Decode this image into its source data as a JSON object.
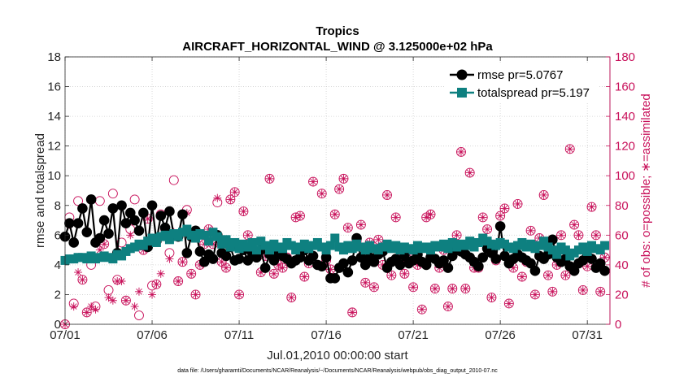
{
  "chart_data": {
    "type": "line",
    "title": "Tropics",
    "subtitle": "AIRCRAFT_HORIZONTAL_WIND @ 3.125000e+02 hPa",
    "xlabel": "Jul.01,2010 00:00:00 start",
    "ylabel": "rmse and totalspread",
    "ylabel_right": "# of obs: o=possible; ∗=assimilated",
    "xlim": [
      1,
      32.3
    ],
    "ylim": [
      0,
      18
    ],
    "ylim_right": [
      0,
      180
    ],
    "x_ticks": [
      1,
      6,
      11,
      16,
      21,
      26,
      31
    ],
    "x_tick_labels": [
      "07/01",
      "07/06",
      "07/11",
      "07/16",
      "07/21",
      "07/26",
      "07/31"
    ],
    "y_ticks": [
      0,
      2,
      4,
      6,
      8,
      10,
      12,
      14,
      16,
      18
    ],
    "y_tick_labels": [
      "0",
      "2",
      "4",
      "6",
      "8",
      "10",
      "12",
      "14",
      "16",
      "18"
    ],
    "y_right_ticks": [
      0,
      20,
      40,
      60,
      80,
      100,
      120,
      140,
      160,
      180
    ],
    "y_right_tick_labels": [
      "0",
      "20",
      "40",
      "60",
      "80",
      "100",
      "120",
      "140",
      "160",
      "180"
    ],
    "grid": true,
    "legend_position": "top-right",
    "series": [
      {
        "name": "rmse pr=5.0767",
        "color": "#000000",
        "marker": "circle",
        "x": [
          1.0,
          1.25,
          1.5,
          1.75,
          2.0,
          2.25,
          2.5,
          2.75,
          3.0,
          3.25,
          3.5,
          3.75,
          4.0,
          4.25,
          4.5,
          4.75,
          5.0,
          5.25,
          5.5,
          5.75,
          6.0,
          6.25,
          6.5,
          6.75,
          7.0,
          7.25,
          7.5,
          7.75,
          8.0,
          8.25,
          8.5,
          8.75,
          9.0,
          9.25,
          9.5,
          9.75,
          10.0,
          10.25,
          10.5,
          10.75,
          11.0,
          11.25,
          11.5,
          11.75,
          12.0,
          12.25,
          12.5,
          12.75,
          13.0,
          13.25,
          13.5,
          13.75,
          14.0,
          14.25,
          14.5,
          14.75,
          15.0,
          15.25,
          15.5,
          15.75,
          16.0,
          16.25,
          16.5,
          16.75,
          17.0,
          17.25,
          17.5,
          17.75,
          18.0,
          18.25,
          18.5,
          18.75,
          19.0,
          19.25,
          19.5,
          19.75,
          20.0,
          20.25,
          20.5,
          20.75,
          21.0,
          21.25,
          21.5,
          21.75,
          22.0,
          22.25,
          22.5,
          22.75,
          23.0,
          23.25,
          23.5,
          23.75,
          24.0,
          24.25,
          24.5,
          24.75,
          25.0,
          25.25,
          25.5,
          25.75,
          26.0,
          26.25,
          26.5,
          26.75,
          27.0,
          27.25,
          27.5,
          27.75,
          28.0,
          28.25,
          28.5,
          28.75,
          29.0,
          29.25,
          29.5,
          29.75,
          30.0,
          30.25,
          30.5,
          30.75,
          31.0,
          31.25,
          31.5,
          31.75,
          32.0
        ],
        "values": [
          5.9,
          6.8,
          5.5,
          6.8,
          7.8,
          6.2,
          8.4,
          5.5,
          5.8,
          7.0,
          6.1,
          7.8,
          4.8,
          8.0,
          6.8,
          7.5,
          7.0,
          6.3,
          7.5,
          5.2,
          8.0,
          5.6,
          7.3,
          6.5,
          7.6,
          6.0,
          5.9,
          7.4,
          4.8,
          5.9,
          6.3,
          4.9,
          4.2,
          4.7,
          4.4,
          6.0,
          4.8,
          4.6,
          5.2,
          4.3,
          4.4,
          5.0,
          4.3,
          4.8,
          4.5,
          5.0,
          3.8,
          4.7,
          4.3,
          4.8,
          4.6,
          4.4,
          4.1,
          4.3,
          4.5,
          5.0,
          4.3,
          4.6,
          4.0,
          3.9,
          4.5,
          3.1,
          3.1,
          3.8,
          4.1,
          3.5,
          4.3,
          5.8,
          4.5,
          4.0,
          4.5,
          4.2,
          4.7,
          4.9,
          3.8,
          4.2,
          4.4,
          4.0,
          4.6,
          4.1,
          4.3,
          4.7,
          4.2,
          4.0,
          4.5,
          4.4,
          4.1,
          4.3,
          3.8,
          4.6,
          5.0,
          4.9,
          4.7,
          4.5,
          4.2,
          3.9,
          4.5,
          5.1,
          4.8,
          4.4,
          6.6,
          4.6,
          4.1,
          4.4,
          4.7,
          4.5,
          4.3,
          4.1,
          3.6,
          4.6,
          4.4,
          4.7,
          5.7,
          4.5,
          4.2,
          4.4,
          3.9,
          3.6,
          4.1,
          4.3,
          4.6,
          4.4,
          3.8,
          4.1,
          3.6
        ]
      },
      {
        "name": "totalspread pr=5.197",
        "color": "#0e8080",
        "marker": "square",
        "x": [
          1.0,
          1.25,
          1.5,
          1.75,
          2.0,
          2.25,
          2.5,
          2.75,
          3.0,
          3.25,
          3.5,
          3.75,
          4.0,
          4.25,
          4.5,
          4.75,
          5.0,
          5.25,
          5.5,
          5.75,
          6.0,
          6.25,
          6.5,
          6.75,
          7.0,
          7.25,
          7.5,
          7.75,
          8.0,
          8.25,
          8.5,
          8.75,
          9.0,
          9.25,
          9.5,
          9.75,
          10.0,
          10.25,
          10.5,
          10.75,
          11.0,
          11.25,
          11.5,
          11.75,
          12.0,
          12.25,
          12.5,
          12.75,
          13.0,
          13.25,
          13.5,
          13.75,
          14.0,
          14.25,
          14.5,
          14.75,
          15.0,
          15.25,
          15.5,
          15.75,
          16.0,
          16.25,
          16.5,
          16.75,
          17.0,
          17.25,
          17.5,
          17.75,
          18.0,
          18.25,
          18.5,
          18.75,
          19.0,
          19.25,
          19.5,
          19.75,
          20.0,
          20.25,
          20.5,
          20.75,
          21.0,
          21.25,
          21.5,
          21.75,
          22.0,
          22.25,
          22.5,
          22.75,
          23.0,
          23.25,
          23.5,
          23.75,
          24.0,
          24.25,
          24.5,
          24.75,
          25.0,
          25.25,
          25.5,
          25.75,
          26.0,
          26.25,
          26.5,
          26.75,
          27.0,
          27.25,
          27.5,
          27.75,
          28.0,
          28.25,
          28.5,
          28.75,
          29.0,
          29.25,
          29.5,
          29.75,
          30.0,
          30.25,
          30.5,
          30.75,
          31.0,
          31.25,
          31.5,
          31.75,
          32.0
        ],
        "values": [
          4.3,
          4.4,
          4.4,
          4.5,
          4.5,
          4.4,
          4.6,
          4.4,
          4.5,
          4.6,
          4.5,
          4.4,
          4.7,
          4.6,
          4.9,
          5.1,
          5.2,
          5.4,
          5.3,
          5.6,
          5.8,
          5.5,
          5.9,
          6.0,
          5.7,
          6.1,
          5.9,
          6.2,
          6.4,
          6.0,
          5.8,
          6.1,
          6.0,
          5.6,
          6.2,
          5.9,
          5.4,
          5.7,
          5.2,
          5.5,
          5.1,
          5.4,
          5.2,
          5.5,
          5.0,
          5.6,
          5.3,
          5.0,
          5.4,
          5.2,
          5.1,
          5.5,
          5.3,
          5.0,
          5.2,
          5.4,
          5.1,
          5.3,
          5.5,
          5.2,
          5.0,
          5.3,
          5.8,
          5.2,
          5.0,
          5.3,
          5.1,
          5.4,
          5.2,
          5.0,
          5.3,
          5.1,
          5.0,
          5.2,
          5.4,
          5.1,
          5.3,
          5.0,
          5.2,
          5.1,
          5.0,
          5.3,
          5.1,
          5.2,
          5.0,
          5.3,
          5.2,
          5.4,
          5.1,
          5.5,
          5.2,
          5.4,
          5.3,
          5.6,
          5.2,
          5.5,
          5.8,
          5.6,
          5.4,
          5.3,
          5.5,
          5.4,
          5.2,
          5.1,
          5.3,
          5.5,
          5.2,
          5.4,
          5.1,
          5.3,
          5.6,
          5.2,
          5.0,
          4.7,
          5.2,
          5.0,
          4.6,
          4.8,
          5.0,
          5.2,
          4.9,
          5.3,
          5.1,
          5.0,
          5.3
        ]
      }
    ],
    "obs_possible": {
      "name": "possible",
      "marker": "o",
      "color": "#c8105a",
      "x": [
        1.0,
        1.25,
        1.5,
        1.75,
        2.0,
        2.25,
        2.5,
        2.75,
        3.0,
        3.25,
        3.5,
        3.75,
        4.0,
        4.25,
        4.5,
        4.75,
        5.0,
        5.25,
        5.5,
        5.75,
        6.0,
        6.25,
        6.5,
        6.75,
        7.0,
        7.25,
        7.5,
        7.75,
        8.0,
        8.25,
        8.5,
        8.75,
        9.0,
        9.25,
        9.5,
        9.75,
        10.0,
        10.25,
        10.5,
        10.75,
        11.0,
        11.25,
        11.5,
        11.75,
        12.0,
        12.25,
        12.5,
        12.75,
        13.0,
        13.25,
        13.5,
        13.75,
        14.0,
        14.25,
        14.5,
        14.75,
        15.0,
        15.25,
        15.5,
        15.75,
        16.0,
        16.25,
        16.5,
        16.75,
        17.0,
        17.25,
        17.5,
        17.75,
        18.0,
        18.25,
        18.5,
        18.75,
        19.0,
        19.25,
        19.5,
        19.75,
        20.0,
        20.25,
        20.5,
        20.75,
        21.0,
        21.25,
        21.5,
        21.75,
        22.0,
        22.25,
        22.5,
        22.75,
        23.0,
        23.25,
        23.5,
        23.75,
        24.0,
        24.25,
        24.5,
        24.75,
        25.0,
        25.25,
        25.5,
        25.75,
        26.0,
        26.25,
        26.5,
        26.75,
        27.0,
        27.25,
        27.5,
        27.75,
        28.0,
        28.25,
        28.5,
        28.75,
        29.0,
        29.25,
        29.5,
        29.75,
        30.0,
        30.25,
        30.5,
        30.75,
        31.0,
        31.25,
        31.5,
        31.75,
        32.0
      ],
      "values": [
        0,
        72,
        14,
        83,
        30,
        8,
        40,
        12,
        83,
        54,
        23,
        88,
        30,
        55,
        16,
        64,
        84,
        6,
        50,
        71,
        26,
        27,
        74,
        64,
        48,
        97,
        29,
        42,
        77,
        34,
        20,
        40,
        54,
        64,
        54,
        82,
        42,
        38,
        84,
        89,
        20,
        76,
        60,
        52,
        48,
        35,
        46,
        98,
        34,
        40,
        38,
        45,
        18,
        72,
        73,
        32,
        41,
        96,
        54,
        88,
        43,
        37,
        74,
        91,
        98,
        65,
        8,
        56,
        67,
        28,
        55,
        25,
        57,
        40,
        87,
        33,
        72,
        44,
        34,
        47,
        25,
        40,
        10,
        72,
        74,
        24,
        38,
        50,
        12,
        24,
        60,
        116,
        24,
        102,
        38,
        38,
        72,
        64,
        18,
        43,
        73,
        78,
        14,
        38,
        81,
        32,
        42,
        63,
        20,
        58,
        87,
        33,
        22,
        40,
        60,
        33,
        118,
        67,
        60,
        23,
        39,
        79,
        60,
        22,
        45
      ]
    },
    "obs_assimilated": {
      "name": "assimilated",
      "marker": "*",
      "color": "#c8105a",
      "x": [
        1.0,
        1.25,
        1.5,
        1.75,
        2.0,
        2.25,
        2.5,
        2.75,
        3.0,
        3.25,
        3.5,
        3.75,
        4.0,
        4.25,
        4.5,
        4.75,
        5.0,
        5.25,
        5.5,
        5.75,
        6.0,
        6.25,
        6.5,
        6.75,
        7.0,
        7.25,
        7.5,
        7.75,
        8.0,
        8.25,
        8.5,
        8.75,
        9.0,
        9.25,
        9.5,
        9.75,
        10.0,
        10.25,
        10.5,
        10.75,
        11.0,
        11.25,
        11.5,
        11.75,
        12.0,
        12.25,
        12.5,
        12.75,
        13.0,
        13.25,
        13.5,
        13.75,
        14.0,
        14.25,
        14.5,
        14.75,
        15.0,
        15.25,
        15.5,
        15.75,
        16.0,
        16.25,
        16.5,
        16.75,
        17.0,
        17.25,
        17.5,
        17.75,
        18.0,
        18.25,
        18.5,
        18.75,
        19.0,
        19.25,
        19.5,
        19.75,
        20.0,
        20.25,
        20.5,
        20.75,
        21.0,
        21.25,
        21.5,
        21.75,
        22.0,
        22.25,
        22.5,
        22.75,
        23.0,
        23.25,
        23.5,
        23.75,
        24.0,
        24.25,
        24.5,
        24.75,
        25.0,
        25.25,
        25.5,
        25.75,
        26.0,
        26.25,
        26.5,
        26.75,
        27.0,
        27.25,
        27.5,
        27.75,
        28.0,
        28.25,
        28.5,
        28.75,
        29.0,
        29.25,
        29.5,
        29.75,
        30.0,
        30.25,
        30.5,
        30.75,
        31.0,
        31.25,
        31.5,
        31.75,
        32.0
      ],
      "values": [
        0,
        67,
        12,
        35,
        30,
        8,
        12,
        10,
        50,
        54,
        18,
        16,
        29,
        29,
        16,
        60,
        12,
        22,
        50,
        71,
        20,
        27,
        34,
        64,
        44,
        62,
        29,
        42,
        75,
        34,
        20,
        40,
        54,
        64,
        54,
        85,
        42,
        38,
        84,
        89,
        20,
        76,
        60,
        52,
        48,
        35,
        46,
        98,
        34,
        40,
        38,
        45,
        18,
        72,
        73,
        32,
        41,
        96,
        54,
        88,
        43,
        37,
        74,
        91,
        98,
        65,
        8,
        56,
        67,
        28,
        55,
        25,
        57,
        40,
        87,
        33,
        72,
        44,
        34,
        47,
        25,
        40,
        10,
        72,
        74,
        24,
        38,
        50,
        12,
        24,
        60,
        116,
        24,
        102,
        38,
        38,
        72,
        64,
        18,
        43,
        73,
        78,
        14,
        38,
        81,
        32,
        42,
        63,
        20,
        58,
        87,
        33,
        22,
        40,
        60,
        33,
        118,
        67,
        60,
        23,
        39,
        79,
        60,
        22,
        45
      ]
    }
  },
  "footer": "data file: /Users/gharamti/Documents/NCAR/Reanalysis/~/Documents/NCAR/Reanalysis/webpub/obs_diag_output_2010-07.nc"
}
